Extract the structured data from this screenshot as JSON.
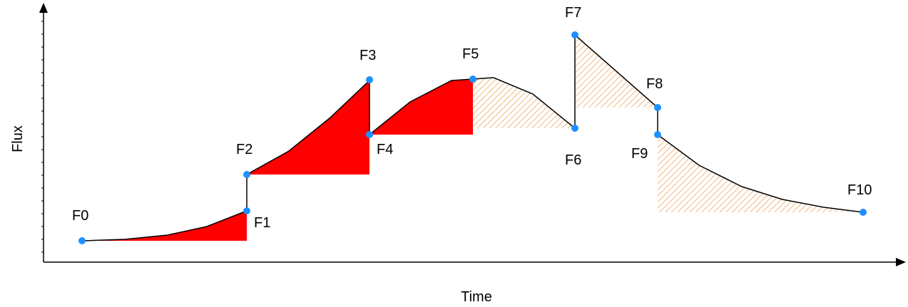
{
  "axes": {
    "x_label": "Time",
    "y_label": "Flux"
  },
  "points": [
    {
      "id": "F0",
      "label": "F0"
    },
    {
      "id": "F1",
      "label": "F1"
    },
    {
      "id": "F2",
      "label": "F2"
    },
    {
      "id": "F3",
      "label": "F3"
    },
    {
      "id": "F4",
      "label": "F4"
    },
    {
      "id": "F5",
      "label": "F5"
    },
    {
      "id": "F6",
      "label": "F6"
    },
    {
      "id": "F7",
      "label": "F7"
    },
    {
      "id": "F8",
      "label": "F8"
    },
    {
      "id": "F9",
      "label": "F9"
    },
    {
      "id": "F10",
      "label": "F10"
    }
  ],
  "colors": {
    "solid_fill": "#ff0000",
    "hatch": "#f4a460",
    "marker": "#1e90ff",
    "line": "#000000"
  }
}
